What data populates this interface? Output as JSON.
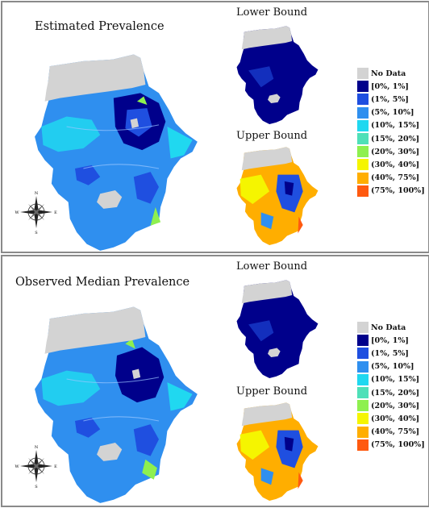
{
  "panels": [
    {
      "title": "Estimated Prevalence",
      "lower_label": "Lower Bound",
      "upper_label": "Upper Bound"
    },
    {
      "title": "Observed Median Prevalence",
      "lower_label": "Lower Bound",
      "upper_label": "Upper Bound"
    }
  ],
  "legend": {
    "items": [
      {
        "label": "No Data",
        "color": "#d3d3d3"
      },
      {
        "label": "[0%, 1%]",
        "color": "#00008b"
      },
      {
        "label": "(1%, 5%]",
        "color": "#1f4fe0"
      },
      {
        "label": "(5%, 10%]",
        "color": "#2f8fef"
      },
      {
        "label": "(10%, 15%]",
        "color": "#20d8f0"
      },
      {
        "label": "(15%, 20%]",
        "color": "#4fe0b8"
      },
      {
        "label": "(20%, 30%]",
        "color": "#8ef04f"
      },
      {
        "label": "(30%, 40%]",
        "color": "#f5f500"
      },
      {
        "label": "(40%, 75%]",
        "color": "#ffae00"
      },
      {
        "label": "(75%, 100%]",
        "color": "#ff5a10"
      }
    ]
  },
  "compass": {
    "n": "N",
    "s": "S",
    "e": "E",
    "w": "W"
  }
}
